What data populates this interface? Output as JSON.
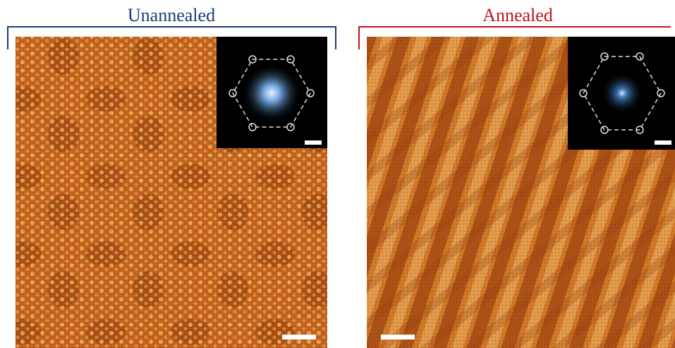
{
  "panels": [
    {
      "title": "Unannealed"
    },
    {
      "title": "Annealed"
    }
  ]
}
